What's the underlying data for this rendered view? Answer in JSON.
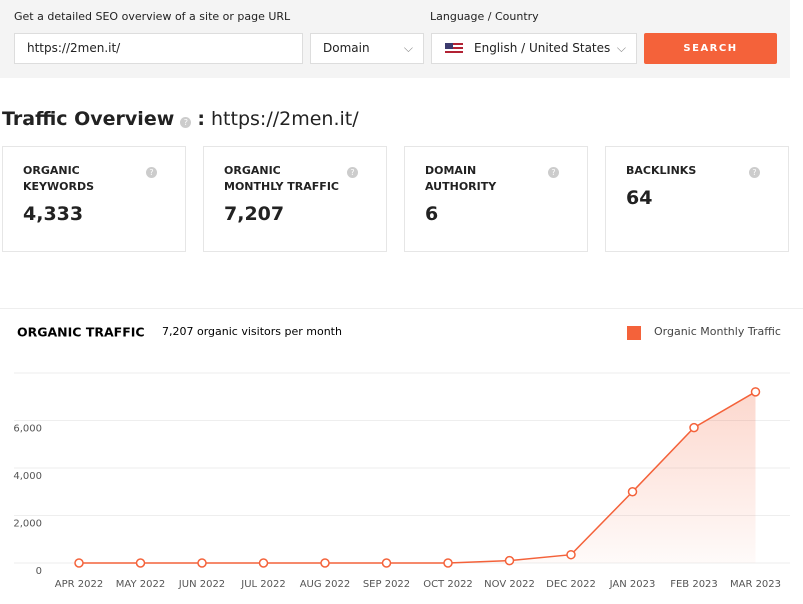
{
  "search": {
    "url_label": "Get a detailed SEO overview of a site or page URL",
    "url_value": "https://2men.it/",
    "mode": "Domain",
    "lang_label": "Language / Country",
    "lang_value": "English / United States",
    "button": "SEARCH"
  },
  "overview": {
    "title": "Traffic Overview",
    "sep": ":",
    "url": "https://2men.it/",
    "cards": [
      {
        "title": "ORGANIC KEYWORDS",
        "value": "4,333"
      },
      {
        "title": "ORGANIC MONTHLY TRAFFIC",
        "value": "7,207"
      },
      {
        "title": "DOMAIN AUTHORITY",
        "value": "6"
      },
      {
        "title": "BACKLINKS",
        "value": "64"
      }
    ]
  },
  "chart_data": {
    "type": "line",
    "title": "ORGANIC TRAFFIC",
    "subtitle": "7,207 organic visitors per month",
    "categories": [
      "APR 2022",
      "MAY 2022",
      "JUN 2022",
      "JUL 2022",
      "AUG 2022",
      "SEP 2022",
      "OCT 2022",
      "NOV 2022",
      "DEC 2022",
      "JAN 2023",
      "FEB 2023",
      "MAR 2023"
    ],
    "series": [
      {
        "name": "Organic Monthly Traffic",
        "color": "#f4623a",
        "values": [
          0,
          0,
          0,
          0,
          0,
          0,
          0,
          100,
          350,
          3000,
          5700,
          7207
        ]
      }
    ],
    "ylim": [
      0,
      8000
    ],
    "yticks": [
      0,
      {
        "value": 2000,
        "label": "2,000"
      },
      {
        "value": 4000,
        "label": "4,000"
      },
      {
        "value": 6000,
        "label": "6,000"
      }
    ],
    "grid": true,
    "legend": "top-right"
  }
}
